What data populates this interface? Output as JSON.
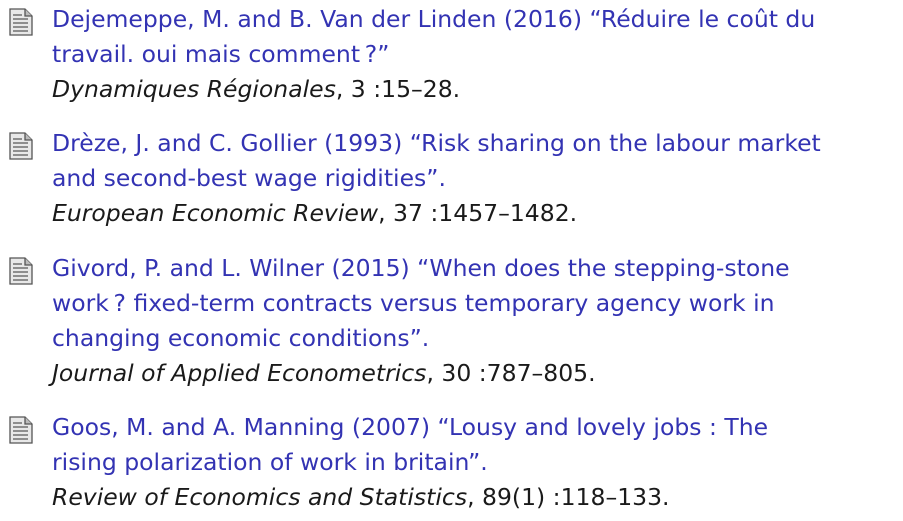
{
  "references": [
    {
      "title_lines": [
        "Dejemeppe, M. and B. Van der Linden (2016) “Réduire le coût du",
        "travail. oui mais comment ?”"
      ],
      "journal": "Dynamiques Régionales",
      "details": ", 3 :15–28."
    },
    {
      "title_lines": [
        "Drèze, J. and C. Gollier (1993) “Risk sharing on the labour market",
        "and second-best wage rigidities”."
      ],
      "journal": "European Economic Review",
      "details": ", 37 :1457–1482."
    },
    {
      "title_lines": [
        "Givord, P. and L. Wilner (2015) “When does the stepping-stone",
        "work ? fixed-term contracts versus temporary agency work in",
        "changing economic conditions”."
      ],
      "journal": "Journal of Applied Econometrics",
      "details": ", 30 :787–805."
    },
    {
      "title_lines": [
        "Goos, M. and A. Manning (2007) “Lousy and lovely jobs : The",
        "rising polarization of work in britain”."
      ],
      "journal": "Review of Economics and Statistics",
      "details": ", 89(1) :118–133."
    }
  ]
}
